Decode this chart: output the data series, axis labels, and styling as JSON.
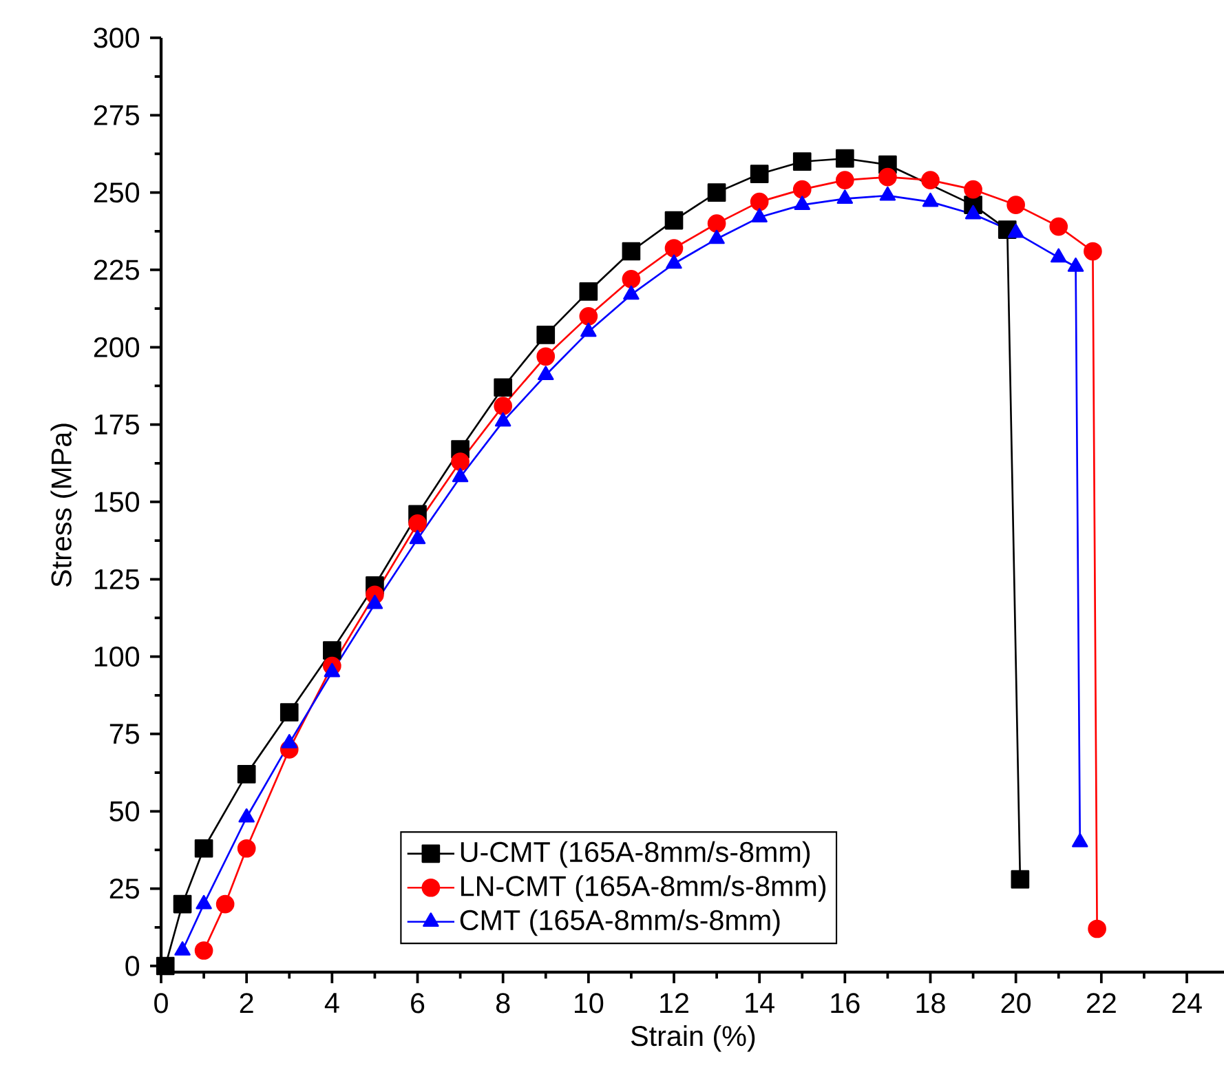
{
  "chart_data": {
    "type": "line",
    "xlabel": "Strain (%)",
    "ylabel": "Stress (MPa)",
    "xlim": [
      0,
      24.9
    ],
    "ylim": [
      -2,
      300
    ],
    "xticks": [
      0,
      2,
      4,
      6,
      8,
      10,
      12,
      14,
      16,
      18,
      20,
      22,
      24
    ],
    "yticks": [
      0,
      25,
      50,
      75,
      100,
      125,
      150,
      175,
      200,
      225,
      250,
      275,
      300
    ],
    "grid": false,
    "legend": "bottom",
    "line_style": "solid",
    "series": [
      {
        "name": "U-CMT (165A-8mm/s-8mm)",
        "color": "#000000",
        "marker": "square",
        "x": [
          0.1,
          0.5,
          1,
          2,
          3,
          4,
          5,
          6,
          7,
          8,
          9,
          10,
          11,
          12,
          13,
          14,
          15,
          16,
          17,
          19,
          19.8,
          20.1
        ],
        "values": [
          0,
          20,
          38,
          62,
          82,
          102,
          123,
          146,
          167,
          187,
          204,
          218,
          231,
          241,
          250,
          256,
          260,
          261,
          259,
          246,
          238,
          28
        ]
      },
      {
        "name": "LN-CMT (165A-8mm/s-8mm)",
        "color": "#ff0000",
        "marker": "circle",
        "x": [
          1,
          1.5,
          2,
          3,
          4,
          5,
          6,
          7,
          8,
          9,
          10,
          11,
          12,
          13,
          14,
          15,
          16,
          17,
          18,
          19,
          20,
          21,
          21.8,
          21.9
        ],
        "values": [
          5,
          20,
          38,
          70,
          97,
          120,
          143,
          163,
          181,
          197,
          210,
          222,
          232,
          240,
          247,
          251,
          254,
          255,
          254,
          251,
          246,
          239,
          231,
          12
        ]
      },
      {
        "name": "CMT (165A-8mm/s-8mm)",
        "color": "#0000ff",
        "marker": "triangle",
        "x": [
          0.5,
          1,
          2,
          3,
          4,
          5,
          6,
          7,
          8,
          9,
          10,
          11,
          12,
          13,
          14,
          15,
          16,
          17,
          18,
          19,
          20,
          21,
          21.4,
          21.5
        ],
        "values": [
          5,
          20,
          48,
          72,
          95,
          117,
          138,
          158,
          176,
          191,
          205,
          217,
          227,
          235,
          242,
          246,
          248,
          249,
          247,
          243,
          237,
          229,
          226,
          40
        ]
      }
    ]
  }
}
